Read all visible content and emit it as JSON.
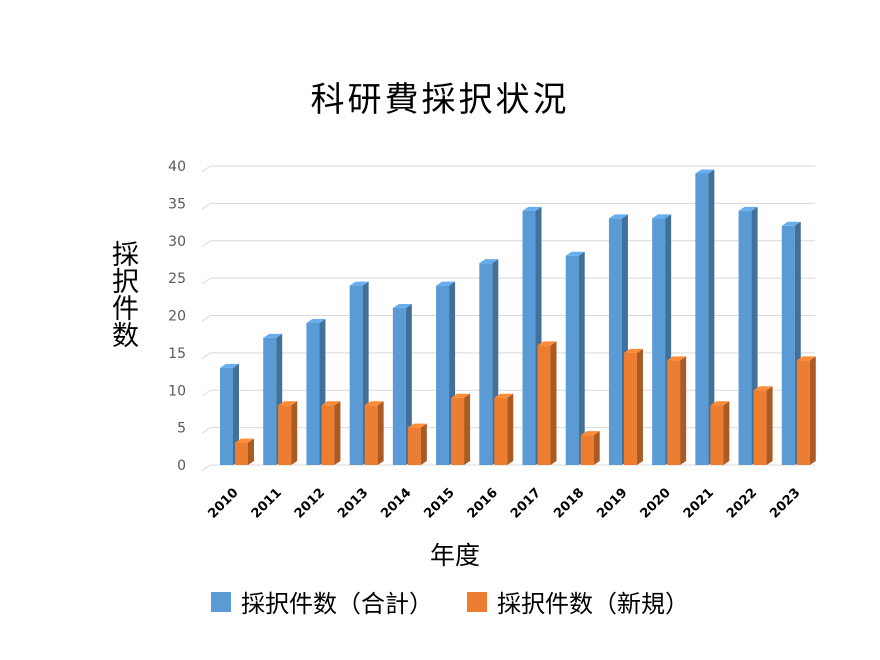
{
  "chart_data": {
    "type": "bar",
    "title": "科研費採択状況",
    "xlabel": "年度",
    "ylabel": "採択件数",
    "categories": [
      "2010",
      "2011",
      "2012",
      "2013",
      "2014",
      "2015",
      "2016",
      "2017",
      "2018",
      "2019",
      "2020",
      "2021",
      "2022",
      "2023"
    ],
    "series": [
      {
        "name": "採択件数（合計）",
        "color": "#5b9bd5",
        "values": [
          13,
          17,
          19,
          24,
          21,
          24,
          27,
          34,
          28,
          33,
          33,
          39,
          34,
          32
        ]
      },
      {
        "name": "採択件数（新規）",
        "color": "#ed7d31",
        "values": [
          3,
          8,
          8,
          8,
          5,
          9,
          9,
          16,
          4,
          15,
          14,
          8,
          10,
          14
        ]
      }
    ],
    "ylim": [
      0,
      40
    ],
    "yticks": [
      0,
      5,
      10,
      15,
      20,
      25,
      30,
      35,
      40
    ],
    "grid": true,
    "legend": "bottom"
  }
}
